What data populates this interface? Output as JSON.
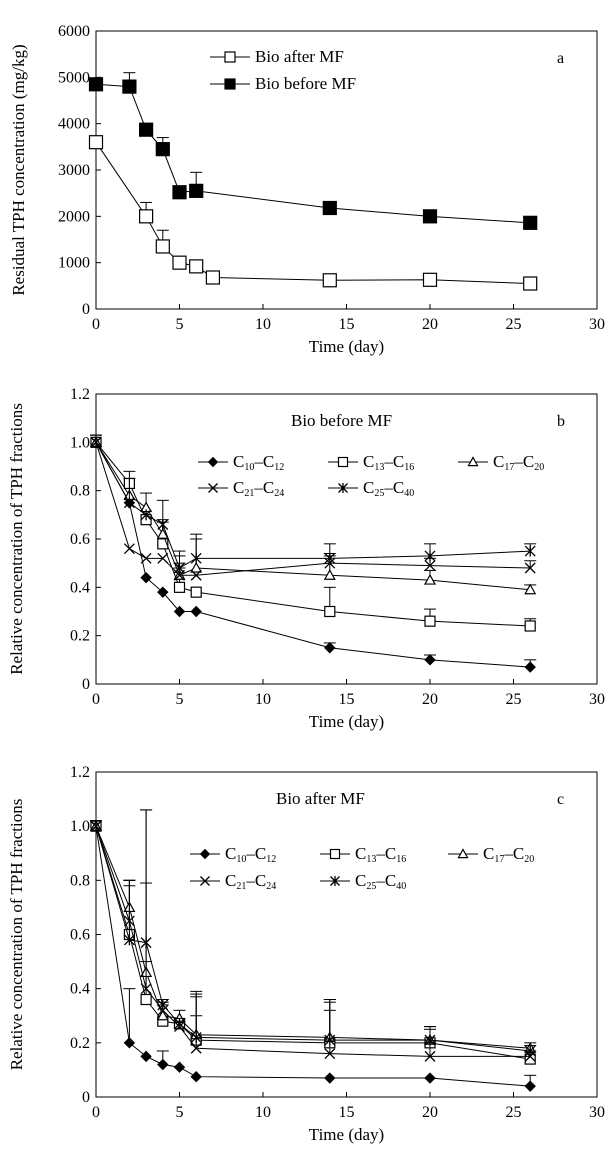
{
  "chart_data": [
    {
      "id": "a",
      "type": "line",
      "panel_label": "a",
      "xlabel": "Time (day)",
      "ylabel": "Residual TPH concentration (mg/kg)",
      "xlim": [
        0,
        30
      ],
      "ylim": [
        0,
        6000
      ],
      "xticks": [
        0,
        5,
        10,
        15,
        20,
        25,
        30
      ],
      "yticks": [
        0,
        1000,
        2000,
        3000,
        4000,
        5000,
        6000
      ],
      "legend_position": "top-center",
      "legend": [
        [
          "Bio after MF"
        ],
        [
          "Bio before MF"
        ]
      ],
      "series": [
        {
          "name": "Bio after MF",
          "marker": "open-square",
          "x": [
            0,
            3,
            4,
            5,
            6,
            7,
            14,
            20,
            26
          ],
          "y": [
            3600,
            2000,
            1350,
            1000,
            920,
            680,
            620,
            630,
            550
          ],
          "err": [
            0,
            300,
            350,
            0,
            0,
            0,
            0,
            0,
            0
          ]
        },
        {
          "name": "Bio before MF",
          "marker": "filled-square",
          "x": [
            0,
            2,
            3,
            4,
            5,
            6,
            14,
            20,
            26
          ],
          "y": [
            4850,
            4800,
            3870,
            3450,
            2520,
            2550,
            2180,
            2000,
            1860
          ],
          "err": [
            100,
            300,
            0,
            250,
            0,
            400,
            0,
            0,
            0
          ]
        }
      ]
    },
    {
      "id": "b",
      "type": "line",
      "panel_label": "b",
      "title": "Bio before MF",
      "xlabel": "Time (day)",
      "ylabel": "Relative concentration of TPH fractions",
      "xlim": [
        0,
        30
      ],
      "ylim": [
        0,
        1.2
      ],
      "xticks": [
        0,
        5,
        10,
        15,
        20,
        25,
        30
      ],
      "yticks": [
        0,
        0.2,
        0.4,
        0.6,
        0.8,
        1.0,
        1.2
      ],
      "legend_position": "top-right",
      "legend": [
        [
          "C10–C12",
          "C13–C16",
          "C17–C20"
        ],
        [
          "C21–C24",
          "C25–C40"
        ]
      ],
      "series": [
        {
          "name": "C10–C12",
          "marker": "filled-diamond",
          "x": [
            0,
            2,
            3,
            4,
            5,
            6,
            14,
            20,
            26
          ],
          "y": [
            1.0,
            0.75,
            0.44,
            0.38,
            0.3,
            0.3,
            0.15,
            0.1,
            0.07
          ],
          "err": [
            0.03,
            0,
            0,
            0,
            0,
            0,
            0.02,
            0.02,
            0.03
          ]
        },
        {
          "name": "C13–C16",
          "marker": "open-square",
          "x": [
            0,
            2,
            3,
            4,
            5,
            6,
            14,
            20,
            26
          ],
          "y": [
            1.0,
            0.83,
            0.68,
            0.58,
            0.4,
            0.38,
            0.3,
            0.26,
            0.24
          ],
          "err": [
            0.03,
            0,
            0,
            0.1,
            0.1,
            0,
            0.1,
            0.05,
            0.03
          ]
        },
        {
          "name": "C17–C20",
          "marker": "open-triangle",
          "x": [
            0,
            2,
            3,
            4,
            5,
            6,
            14,
            20,
            26
          ],
          "y": [
            1.0,
            0.78,
            0.73,
            0.62,
            0.45,
            0.48,
            0.45,
            0.43,
            0.39
          ],
          "err": [
            0.03,
            0.1,
            0.06,
            0.05,
            0.1,
            0.12,
            0.08,
            0.04,
            0.02
          ]
        },
        {
          "name": "C21–C24",
          "marker": "cross",
          "x": [
            0,
            2,
            3,
            4,
            5,
            6,
            14,
            20,
            26
          ],
          "y": [
            1.0,
            0.56,
            0.52,
            0.52,
            0.45,
            0.45,
            0.5,
            0.49,
            0.48
          ],
          "err": [
            0.03,
            0,
            0,
            0,
            0.03,
            0,
            0.04,
            0.03,
            0.03
          ]
        },
        {
          "name": "C25–C40",
          "marker": "asterisk",
          "x": [
            0,
            2,
            3,
            4,
            5,
            6,
            14,
            20,
            26
          ],
          "y": [
            1.0,
            0.75,
            0.7,
            0.66,
            0.48,
            0.52,
            0.52,
            0.53,
            0.55
          ],
          "err": [
            0.03,
            0.1,
            0,
            0.1,
            0.05,
            0.1,
            0.06,
            0.05,
            0.03
          ]
        }
      ]
    },
    {
      "id": "c",
      "type": "line",
      "panel_label": "c",
      "title": "Bio after MF",
      "xlabel": "Time (day)",
      "ylabel": "Relative concentration of TPH fractions",
      "xlim": [
        0,
        30
      ],
      "ylim": [
        0,
        1.2
      ],
      "xticks": [
        0,
        5,
        10,
        15,
        20,
        25,
        30
      ],
      "yticks": [
        0,
        0.2,
        0.4,
        0.6,
        0.8,
        1.0,
        1.2
      ],
      "legend_position": "top-right",
      "legend": [
        [
          "C10–C12",
          "C13–C16",
          "C17–C20"
        ],
        [
          "C21–C24",
          "C25–C40"
        ]
      ],
      "series": [
        {
          "name": "C10–C12",
          "marker": "filled-diamond",
          "x": [
            0,
            2,
            3,
            4,
            5,
            6,
            14,
            20,
            26
          ],
          "y": [
            1.0,
            0.2,
            0.15,
            0.12,
            0.11,
            0.075,
            0.07,
            0.07,
            0.04
          ],
          "err": [
            0.02,
            0.2,
            0,
            0.05,
            0,
            0,
            0,
            0,
            0.04
          ]
        },
        {
          "name": "C13–C16",
          "marker": "open-square",
          "x": [
            0,
            2,
            3,
            4,
            5,
            6,
            14,
            20,
            26
          ],
          "y": [
            1.0,
            0.6,
            0.36,
            0.28,
            0.27,
            0.21,
            0.2,
            0.2,
            0.14
          ],
          "err": [
            0.02,
            0.2,
            0.7,
            0,
            0,
            0.17,
            0.15,
            0.05,
            0
          ]
        },
        {
          "name": "C17–C20",
          "marker": "open-triangle",
          "x": [
            0,
            2,
            3,
            4,
            5,
            6,
            14,
            20,
            26
          ],
          "y": [
            1.0,
            0.7,
            0.46,
            0.3,
            0.29,
            0.23,
            0.22,
            0.21,
            0.18
          ],
          "err": [
            0.02,
            0.1,
            0.6,
            0.05,
            0.03,
            0.16,
            0.14,
            0.05,
            0.02
          ]
        },
        {
          "name": "C21–C24",
          "marker": "cross",
          "x": [
            0,
            2,
            3,
            4,
            5,
            6,
            14,
            20,
            26
          ],
          "y": [
            1.0,
            0.65,
            0.4,
            0.32,
            0.26,
            0.18,
            0.16,
            0.15,
            0.15
          ],
          "err": [
            0.02,
            0.15,
            0.1,
            0.02,
            0.02,
            0.12,
            0.16,
            0.05,
            0.02
          ]
        },
        {
          "name": "C25–C40",
          "marker": "asterisk",
          "x": [
            0,
            2,
            3,
            4,
            5,
            6,
            14,
            20,
            26
          ],
          "y": [
            1.0,
            0.58,
            0.57,
            0.34,
            0.27,
            0.22,
            0.21,
            0.21,
            0.17
          ],
          "err": [
            0.02,
            0.2,
            0.22,
            0.02,
            0.02,
            0.15,
            0.15,
            0.05,
            0.02
          ]
        }
      ]
    }
  ]
}
